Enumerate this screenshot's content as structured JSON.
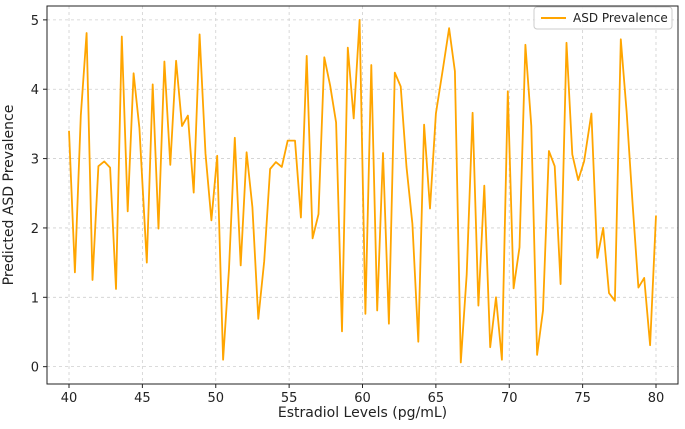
{
  "chart_data": {
    "type": "line",
    "title": "",
    "xlabel": "Estradiol Levels (pg/mL)",
    "ylabel": "Predicted ASD Prevalence",
    "xlim": [
      38.5,
      81.5
    ],
    "ylim": [
      -0.25,
      5.2
    ],
    "x_ticks": [
      40,
      45,
      50,
      55,
      60,
      65,
      70,
      75,
      80
    ],
    "y_ticks": [
      0,
      1,
      2,
      3,
      4,
      5
    ],
    "grid": true,
    "legend_position": "top-right",
    "series": [
      {
        "name": "ASD Prevalence",
        "color": "#FFA500",
        "x": [
          40.0,
          40.4,
          40.8,
          41.2,
          41.6,
          42.0,
          42.4,
          42.8,
          43.2,
          43.6,
          44.0,
          44.4,
          44.8,
          45.3,
          45.7,
          46.1,
          46.5,
          46.9,
          47.3,
          47.7,
          48.1,
          48.5,
          48.9,
          49.3,
          49.7,
          50.1,
          50.5,
          50.9,
          51.3,
          51.7,
          52.1,
          52.5,
          52.9,
          53.3,
          53.7,
          54.1,
          54.5,
          54.9,
          55.4,
          55.8,
          56.2,
          56.6,
          57.0,
          57.4,
          57.8,
          58.2,
          58.6,
          59.0,
          59.4,
          59.8,
          60.2,
          60.6,
          61.0,
          61.4,
          61.8,
          62.2,
          62.6,
          63.0,
          63.4,
          63.8,
          64.2,
          64.6,
          65.0,
          65.5,
          65.9,
          66.3,
          66.7,
          67.1,
          67.5,
          67.9,
          68.3,
          68.7,
          69.1,
          69.5,
          69.9,
          70.3,
          70.7,
          71.1,
          71.5,
          71.9,
          72.3,
          72.7,
          73.1,
          73.5,
          73.9,
          74.3,
          74.7,
          75.1,
          75.6,
          76.0,
          76.4,
          76.8,
          77.2,
          77.6,
          78.0,
          78.4,
          78.8,
          79.2,
          79.6,
          80.0
        ],
        "values": [
          3.4,
          1.36,
          3.62,
          4.81,
          1.25,
          2.89,
          2.96,
          2.87,
          1.12,
          4.76,
          2.24,
          4.23,
          3.44,
          1.5,
          4.07,
          1.99,
          4.4,
          2.91,
          4.41,
          3.47,
          3.62,
          2.51,
          4.79,
          3.07,
          2.11,
          3.04,
          0.1,
          1.41,
          3.3,
          1.46,
          3.09,
          2.3,
          0.69,
          1.52,
          2.85,
          2.95,
          2.88,
          3.26,
          3.26,
          2.15,
          4.48,
          1.85,
          2.2,
          4.46,
          4.05,
          3.52,
          0.51,
          4.6,
          3.58,
          5.0,
          0.76,
          4.35,
          0.81,
          3.08,
          0.62,
          4.24,
          4.04,
          2.88,
          2.06,
          0.36,
          3.49,
          2.28,
          3.65,
          4.32,
          4.88,
          4.26,
          0.06,
          1.33,
          3.66,
          0.88,
          2.61,
          0.28,
          1.0,
          0.1,
          3.97,
          1.13,
          1.72,
          4.64,
          3.47,
          0.17,
          0.81,
          3.11,
          2.89,
          1.19,
          4.67,
          3.06,
          2.69,
          2.96,
          3.65,
          1.57,
          2.0,
          1.06,
          0.95,
          4.72,
          3.68,
          2.37,
          1.14,
          1.28,
          0.31,
          2.18
        ]
      }
    ]
  }
}
